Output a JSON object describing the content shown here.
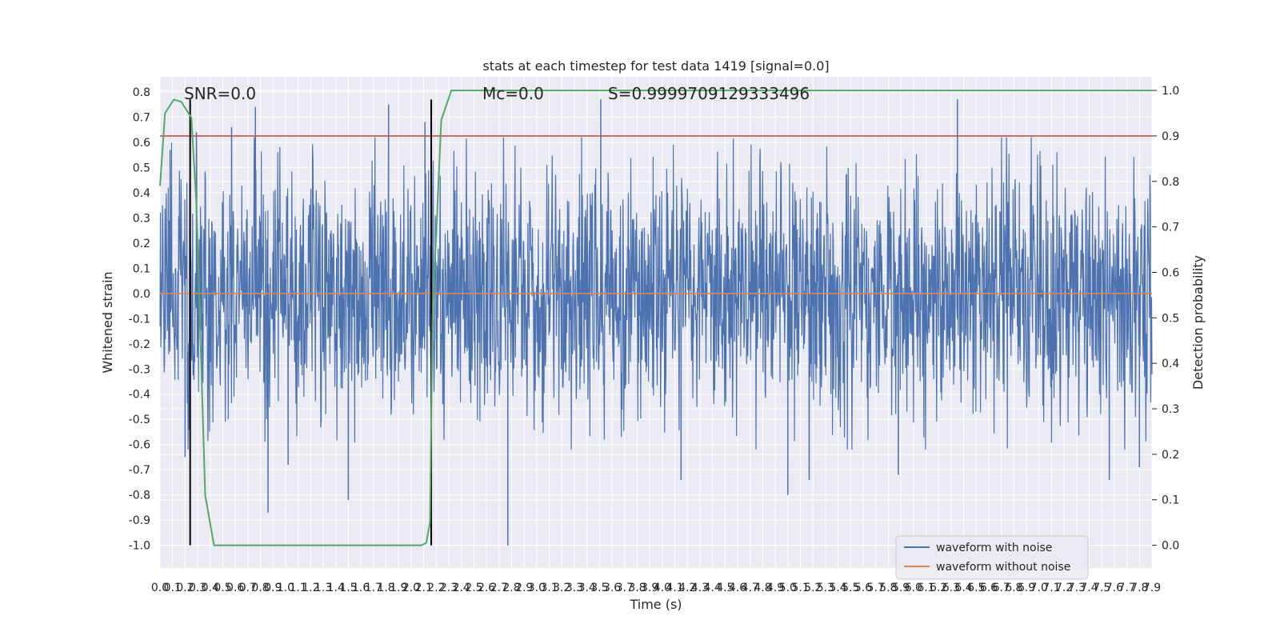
{
  "chart_data": {
    "type": "line",
    "title": "stats at each timestep for test data 1419 [signal=0.0]",
    "xlabel": "Time (s)",
    "ylabel_left": "Whitened strain",
    "ylabel_right": "Detection probability",
    "xlim": [
      0.0,
      7.9
    ],
    "ylim_left": [
      -1.09,
      0.86
    ],
    "ylim_right": [
      -0.05,
      1.03
    ],
    "x_ticks": [
      "0.0",
      "0.1",
      "0.2",
      "0.3",
      "0.4",
      "0.5",
      "0.6",
      "0.7",
      "0.8",
      "0.9",
      "1.0",
      "1.1",
      "1.2",
      "1.3",
      "1.4",
      "1.5",
      "1.6",
      "1.7",
      "1.8",
      "1.9",
      "2.0",
      "2.1",
      "2.2",
      "2.3",
      "2.4",
      "2.5",
      "2.6",
      "2.7",
      "2.8",
      "2.9",
      "3.0",
      "3.1",
      "3.2",
      "3.3",
      "3.4",
      "3.5",
      "3.6",
      "3.7",
      "3.8",
      "3.9",
      "4.0",
      "4.1",
      "4.2",
      "4.3",
      "4.4",
      "4.5",
      "4.6",
      "4.7",
      "4.8",
      "4.9",
      "5.0",
      "5.1",
      "5.2",
      "5.3",
      "5.4",
      "5.5",
      "5.6",
      "5.7",
      "5.8",
      "5.9",
      "6.0",
      "6.1",
      "6.2",
      "6.3",
      "6.4",
      "6.5",
      "6.6",
      "6.7",
      "6.8",
      "6.9",
      "7.0",
      "7.1",
      "7.2",
      "7.3",
      "7.4",
      "7.5",
      "7.6",
      "7.7",
      "7.8",
      "7.9"
    ],
    "y_ticks_left": [
      "0.8",
      "0.7",
      "0.6",
      "0.5",
      "0.4",
      "0.3",
      "0.2",
      "0.1",
      "0.0",
      "-0.1",
      "-0.2",
      "-0.3",
      "-0.4",
      "-0.5",
      "-0.6",
      "-0.7",
      "-0.8",
      "-0.9",
      "-1.0"
    ],
    "y_ticks_left_values": [
      0.8,
      0.7,
      0.6,
      0.5,
      0.4,
      0.3,
      0.2,
      0.1,
      0.0,
      -0.1,
      -0.2,
      -0.3,
      -0.4,
      -0.5,
      -0.6,
      -0.7,
      -0.8,
      -0.9,
      -1.0
    ],
    "y_ticks_right": [
      "1.0",
      "0.9",
      "0.8",
      "0.7",
      "0.6",
      "0.5",
      "0.4",
      "0.3",
      "0.2",
      "0.1",
      "0.0"
    ],
    "y_ticks_right_values": [
      1.0,
      0.9,
      0.8,
      0.7,
      0.6,
      0.5,
      0.4,
      0.3,
      0.2,
      0.1,
      0.0
    ],
    "annotations": {
      "snr": "SNR=0.0",
      "mc": "Mc=0.0",
      "s": "S=0.9999709129333496"
    },
    "vertical_lines_x": [
      0.24,
      2.16
    ],
    "threshold_detection_probability": 0.9,
    "legend": {
      "placement": "lower-right",
      "entries": [
        "waveform with noise",
        "waveform without noise"
      ]
    },
    "colors": {
      "noise": "#4c72b0",
      "clean": "#dd8452",
      "probability": "#55a868",
      "threshold": "#c44e52",
      "vline": "#000000",
      "background": "#eaeaf2",
      "grid": "#ffffff"
    },
    "series": [
      {
        "name": "waveform with noise",
        "axis": "left",
        "envelope": "dense noise, typical amplitude about ±0.4, peaks to about ±0.8",
        "peaks": [
          {
            "x": 0.08,
            "y": 0.57
          },
          {
            "x": 0.2,
            "y": -0.65
          },
          {
            "x": 0.29,
            "y": 0.64
          },
          {
            "x": 0.57,
            "y": 0.66
          },
          {
            "x": 0.76,
            "y": 0.74
          },
          {
            "x": 0.86,
            "y": -0.87
          },
          {
            "x": 1.02,
            "y": -0.68
          },
          {
            "x": 1.5,
            "y": -0.82
          },
          {
            "x": 1.82,
            "y": 0.75
          },
          {
            "x": 2.11,
            "y": 0.68
          },
          {
            "x": 2.77,
            "y": -1.0
          },
          {
            "x": 3.51,
            "y": 0.77
          },
          {
            "x": 4.15,
            "y": -0.74
          },
          {
            "x": 5.0,
            "y": -0.8
          },
          {
            "x": 5.17,
            "y": -0.74
          },
          {
            "x": 5.88,
            "y": -0.72
          },
          {
            "x": 6.35,
            "y": 0.77
          },
          {
            "x": 7.56,
            "y": -0.74
          },
          {
            "x": 7.8,
            "y": -0.69
          }
        ]
      },
      {
        "name": "waveform without noise",
        "axis": "left",
        "x": [
          0.0,
          7.9
        ],
        "y": [
          0.0,
          0.0
        ]
      },
      {
        "axis": "right",
        "x": [
          0.0,
          0.04,
          0.11,
          0.17,
          0.25,
          0.29,
          0.36,
          0.43,
          0.5,
          1.0,
          1.5,
          2.0,
          2.08,
          2.12,
          2.15,
          2.17,
          2.24,
          2.32,
          2.4,
          3.0,
          4.0,
          5.0,
          6.0,
          7.0,
          7.9
        ],
        "y": [
          0.79,
          0.95,
          0.98,
          0.975,
          0.94,
          0.75,
          0.11,
          0.0,
          0.0,
          0.0,
          0.0,
          0.0,
          0.0,
          0.005,
          0.05,
          0.5,
          0.935,
          1.0,
          1.0,
          1.0,
          1.0,
          1.0,
          1.0,
          1.0,
          1.0
        ]
      }
    ]
  }
}
